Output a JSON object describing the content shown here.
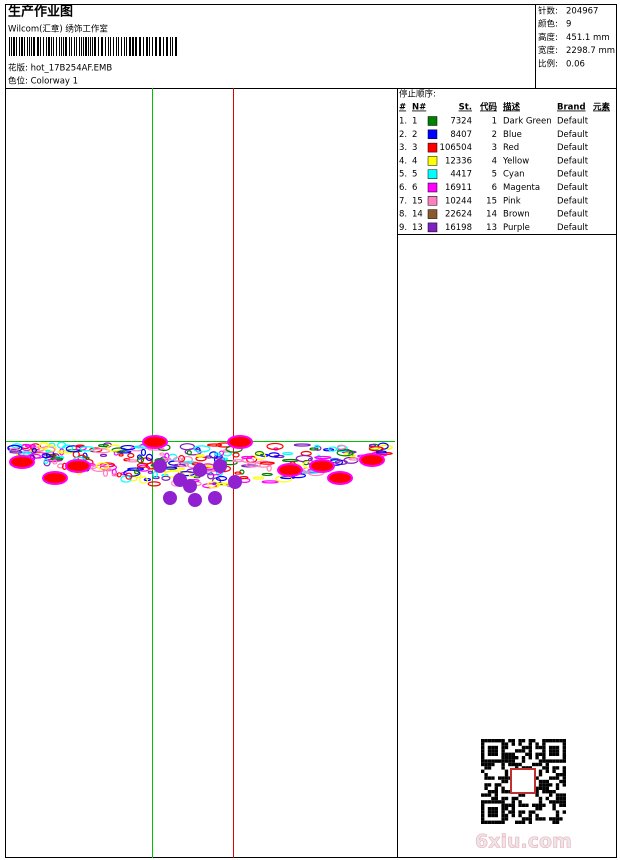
{
  "header": {
    "title": "生产作业图",
    "subtitle": "Wilcom(汇章) 绣饰工作室",
    "design": "花版:  hot_17B254AF.EMB",
    "colorway": "色位:  Colorway 1"
  },
  "info": [
    {
      "label": "针数:",
      "value": "204967"
    },
    {
      "label": "颜色:",
      "value": "9"
    },
    {
      "label": "高度:",
      "value": "451.1 mm"
    },
    {
      "label": "宽度:",
      "value": "2298.7 mm"
    },
    {
      "label": "比例:",
      "value": "0.06"
    }
  ],
  "stop_sequence": {
    "title": "停止顺序:",
    "columns": [
      "#",
      "N#",
      "St.",
      "代码",
      "描述",
      "Brand",
      "元素"
    ],
    "rows": [
      {
        "index": "1.",
        "needle": "1",
        "color": "#008000",
        "stitches": 7324,
        "code": "1",
        "description": "Dark Green",
        "brand": "Default"
      },
      {
        "index": "2.",
        "needle": "2",
        "color": "#0000ff",
        "stitches": 8407,
        "code": "2",
        "description": "Blue",
        "brand": "Default"
      },
      {
        "index": "3.",
        "needle": "3",
        "color": "#ff0000",
        "stitches": 106504,
        "code": "3",
        "description": "Red",
        "brand": "Default"
      },
      {
        "index": "4.",
        "needle": "4",
        "color": "#ffff00",
        "stitches": 12336,
        "code": "4",
        "description": "Yellow",
        "brand": "Default"
      },
      {
        "index": "5.",
        "needle": "5",
        "color": "#00ffff",
        "stitches": 4417,
        "code": "5",
        "description": "Cyan",
        "brand": "Default"
      },
      {
        "index": "6.",
        "needle": "6",
        "color": "#ff00ff",
        "stitches": 16911,
        "code": "6",
        "description": "Magenta",
        "brand": "Default"
      },
      {
        "index": "7.",
        "needle": "15",
        "color": "#ff80c0",
        "stitches": 10244,
        "code": "15",
        "description": "Pink",
        "brand": "Default"
      },
      {
        "index": "8.",
        "needle": "14",
        "color": "#8b5a2b",
        "stitches": 22624,
        "code": "14",
        "description": "Brown",
        "brand": "Default"
      },
      {
        "index": "9.",
        "needle": "13",
        "color": "#8020c0",
        "stitches": 16198,
        "code": "13",
        "description": "Purple",
        "brand": "Default"
      }
    ]
  },
  "watermark": "6xiu.com"
}
